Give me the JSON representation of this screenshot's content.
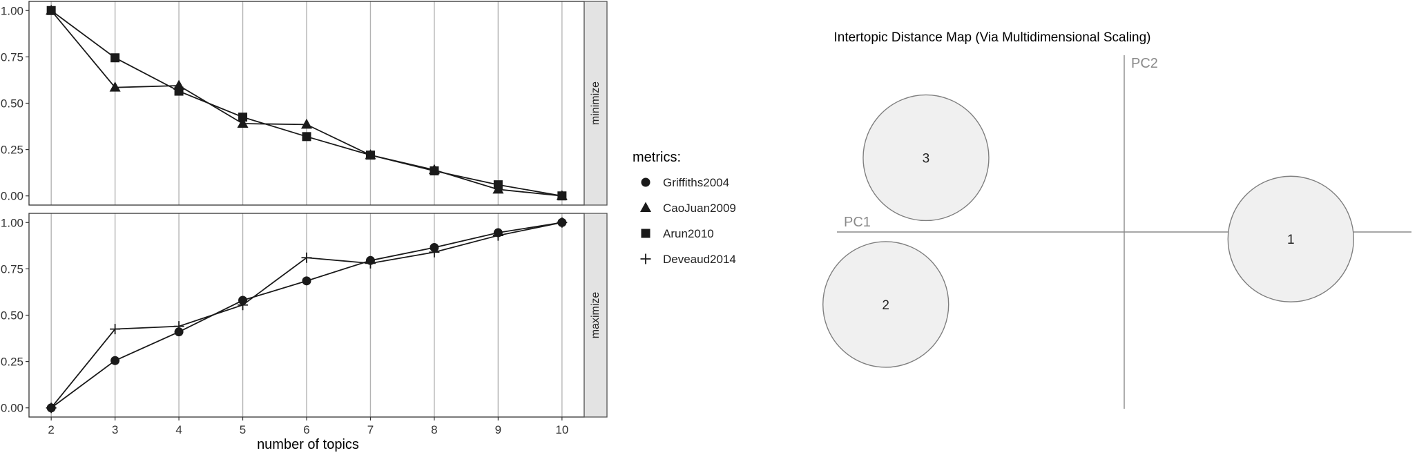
{
  "colors": {
    "ink": "#1a1a1a",
    "grid": "#b3b3b3",
    "strip_fill": "#e3e3e3",
    "strip_border": "#555555",
    "bubble_fill": "#f0f0f0",
    "bubble_stroke": "#7f7f7f",
    "axis_gray": "#8a8a8a"
  },
  "chart_data": [
    {
      "type": "line",
      "xlabel": "number of topics",
      "x": [
        2,
        3,
        4,
        5,
        6,
        7,
        8,
        9,
        10
      ],
      "x_ticks": [
        "2",
        "3",
        "4",
        "5",
        "6",
        "7",
        "8",
        "9",
        "10"
      ],
      "y_ticks": [
        "0.00",
        "0.25",
        "0.50",
        "0.75",
        "1.00"
      ],
      "ylim": [
        0,
        1
      ],
      "legend": {
        "title": "metrics:",
        "placement": "right",
        "items": [
          {
            "label": "Griffiths2004",
            "marker": "circle"
          },
          {
            "label": "CaoJuan2009",
            "marker": "triangle"
          },
          {
            "label": "Arun2010",
            "marker": "square"
          },
          {
            "label": "Deveaud2014",
            "marker": "plus"
          }
        ]
      },
      "facets": [
        {
          "strip": "minimize",
          "series": [
            {
              "name": "CaoJuan2009",
              "marker": "triangle",
              "values": [
                1.0,
                0.585,
                0.595,
                0.39,
                0.385,
                0.22,
                0.14,
                0.035,
                0.0
              ]
            },
            {
              "name": "Arun2010",
              "marker": "square",
              "values": [
                1.0,
                0.745,
                0.565,
                0.425,
                0.32,
                0.22,
                0.135,
                0.06,
                0.0
              ]
            }
          ]
        },
        {
          "strip": "maximize",
          "series": [
            {
              "name": "Griffiths2004",
              "marker": "circle",
              "values": [
                0.0,
                0.255,
                0.41,
                0.58,
                0.685,
                0.795,
                0.865,
                0.945,
                1.0
              ]
            },
            {
              "name": "Deveaud2014",
              "marker": "plus",
              "values": [
                0.0,
                0.425,
                0.44,
                0.555,
                0.81,
                0.78,
                0.84,
                0.93,
                1.0
              ]
            }
          ]
        }
      ]
    },
    {
      "type": "scatter",
      "title": "Intertopic Distance Map (Via Multidimensional Scaling)",
      "xlabel": "PC1",
      "ylabel": "PC2",
      "xlim": [
        -1,
        1
      ],
      "ylim": [
        -1,
        1
      ],
      "topics": [
        {
          "label": "1",
          "x": 0.58,
          "y": -0.04,
          "size": 1
        },
        {
          "label": "2",
          "x": -0.83,
          "y": -0.41,
          "size": 1
        },
        {
          "label": "3",
          "x": -0.69,
          "y": 0.42,
          "size": 1
        }
      ]
    }
  ]
}
